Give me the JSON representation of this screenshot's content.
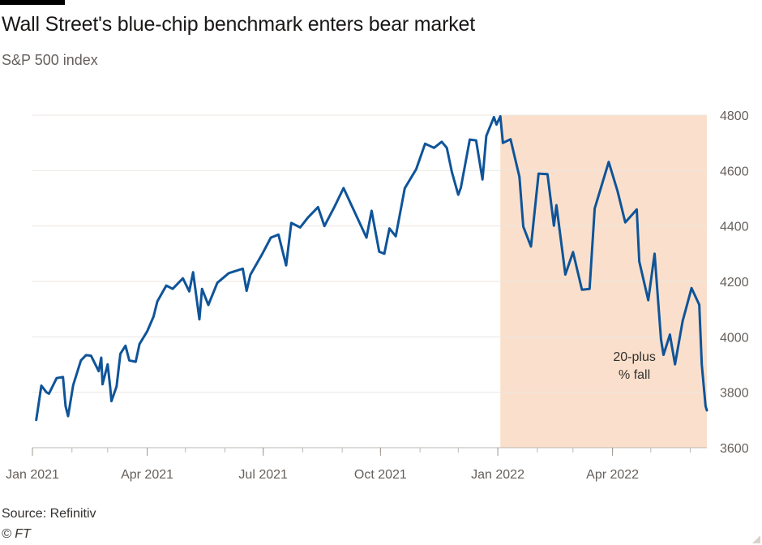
{
  "header": {
    "title": "Wall Street's blue-chip benchmark enters bear market",
    "subtitle": "S&P 500 index"
  },
  "footer": {
    "source": "Source: Refinitiv",
    "credit": "© FT"
  },
  "chart_data": {
    "type": "line",
    "title": "Wall Street's blue-chip benchmark enters bear market",
    "subtitle": "S&P 500 index",
    "xlabel": "",
    "ylabel": "",
    "ylim": [
      3600,
      4800
    ],
    "yticks": [
      3600,
      3800,
      4000,
      4200,
      4400,
      4600,
      4800
    ],
    "xticks": [
      {
        "label": "Jan 2021",
        "date": "2021-01-01"
      },
      {
        "label": "Apr 2021",
        "date": "2021-04-01"
      },
      {
        "label": "Jul 2021",
        "date": "2021-07-01"
      },
      {
        "label": "Oct 2021",
        "date": "2021-10-01"
      },
      {
        "label": "Jan 2022",
        "date": "2022-01-01"
      },
      {
        "label": "Apr 2022",
        "date": "2022-04-01"
      }
    ],
    "xrange": [
      "2021-01-01",
      "2022-06-14"
    ],
    "grid": true,
    "line_color": "#0f5499",
    "shade_color": "#fae0cc",
    "shaded_region": {
      "from": "2022-01-03",
      "to": "2022-06-14",
      "label": "20-plus\n% fall"
    },
    "series": [
      {
        "points": [
          [
            "2021-01-04",
            3700
          ],
          [
            "2021-01-08",
            3824
          ],
          [
            "2021-01-12",
            3800
          ],
          [
            "2021-01-14",
            3795
          ],
          [
            "2021-01-20",
            3851
          ],
          [
            "2021-01-25",
            3855
          ],
          [
            "2021-01-27",
            3750
          ],
          [
            "2021-01-29",
            3714
          ],
          [
            "2021-02-02",
            3826
          ],
          [
            "2021-02-08",
            3915
          ],
          [
            "2021-02-12",
            3934
          ],
          [
            "2021-02-16",
            3932
          ],
          [
            "2021-02-18",
            3913
          ],
          [
            "2021-02-22",
            3876
          ],
          [
            "2021-02-24",
            3925
          ],
          [
            "2021-02-25",
            3829
          ],
          [
            "2021-03-01",
            3901
          ],
          [
            "2021-03-03",
            3819
          ],
          [
            "2021-03-04",
            3768
          ],
          [
            "2021-03-08",
            3821
          ],
          [
            "2021-03-11",
            3939
          ],
          [
            "2021-03-15",
            3968
          ],
          [
            "2021-03-18",
            3915
          ],
          [
            "2021-03-23",
            3910
          ],
          [
            "2021-03-26",
            3974
          ],
          [
            "2021-04-01",
            4020
          ],
          [
            "2021-04-06",
            4073
          ],
          [
            "2021-04-09",
            4128
          ],
          [
            "2021-04-16",
            4185
          ],
          [
            "2021-04-21",
            4173
          ],
          [
            "2021-04-29",
            4211
          ],
          [
            "2021-05-04",
            4164
          ],
          [
            "2021-05-07",
            4233
          ],
          [
            "2021-05-12",
            4063
          ],
          [
            "2021-05-14",
            4173
          ],
          [
            "2021-05-19",
            4115
          ],
          [
            "2021-05-26",
            4195
          ],
          [
            "2021-06-04",
            4230
          ],
          [
            "2021-06-15",
            4246
          ],
          [
            "2021-06-18",
            4166
          ],
          [
            "2021-06-21",
            4224
          ],
          [
            "2021-06-30",
            4297
          ],
          [
            "2021-07-07",
            4358
          ],
          [
            "2021-07-13",
            4369
          ],
          [
            "2021-07-19",
            4258
          ],
          [
            "2021-07-23",
            4411
          ],
          [
            "2021-07-30",
            4395
          ],
          [
            "2021-08-05",
            4430
          ],
          [
            "2021-08-13",
            4468
          ],
          [
            "2021-08-18",
            4400
          ],
          [
            "2021-08-26",
            4470
          ],
          [
            "2021-09-02",
            4537
          ],
          [
            "2021-09-10",
            4458
          ],
          [
            "2021-09-20",
            4358
          ],
          [
            "2021-09-24",
            4455
          ],
          [
            "2021-09-30",
            4307
          ],
          [
            "2021-10-04",
            4300
          ],
          [
            "2021-10-08",
            4391
          ],
          [
            "2021-10-13",
            4363
          ],
          [
            "2021-10-20",
            4536
          ],
          [
            "2021-10-29",
            4605
          ],
          [
            "2021-11-05",
            4697
          ],
          [
            "2021-11-12",
            4682
          ],
          [
            "2021-11-18",
            4704
          ],
          [
            "2021-11-22",
            4682
          ],
          [
            "2021-11-26",
            4595
          ],
          [
            "2021-12-01",
            4513
          ],
          [
            "2021-12-03",
            4538
          ],
          [
            "2021-12-10",
            4712
          ],
          [
            "2021-12-15",
            4709
          ],
          [
            "2021-12-20",
            4568
          ],
          [
            "2021-12-23",
            4725
          ],
          [
            "2021-12-29",
            4793
          ],
          [
            "2021-12-31",
            4766
          ],
          [
            "2022-01-03",
            4796
          ],
          [
            "2022-01-05",
            4700
          ],
          [
            "2022-01-11",
            4713
          ],
          [
            "2022-01-18",
            4577
          ],
          [
            "2022-01-21",
            4398
          ],
          [
            "2022-01-27",
            4326
          ],
          [
            "2022-02-02",
            4589
          ],
          [
            "2022-02-09",
            4587
          ],
          [
            "2022-02-14",
            4401
          ],
          [
            "2022-02-16",
            4475
          ],
          [
            "2022-02-23",
            4225
          ],
          [
            "2022-03-01",
            4306
          ],
          [
            "2022-03-08",
            4170
          ],
          [
            "2022-03-14",
            4173
          ],
          [
            "2022-03-18",
            4463
          ],
          [
            "2022-03-29",
            4631
          ],
          [
            "2022-04-05",
            4525
          ],
          [
            "2022-04-11",
            4413
          ],
          [
            "2022-04-20",
            4460
          ],
          [
            "2022-04-22",
            4272
          ],
          [
            "2022-04-29",
            4132
          ],
          [
            "2022-05-04",
            4300
          ],
          [
            "2022-05-09",
            3991
          ],
          [
            "2022-05-11",
            3935
          ],
          [
            "2022-05-16",
            4008
          ],
          [
            "2022-05-20",
            3901
          ],
          [
            "2022-05-26",
            4057
          ],
          [
            "2022-06-02",
            4176
          ],
          [
            "2022-06-08",
            4116
          ],
          [
            "2022-06-10",
            3900
          ],
          [
            "2022-06-13",
            3750
          ],
          [
            "2022-06-14",
            3735
          ]
        ]
      }
    ]
  }
}
